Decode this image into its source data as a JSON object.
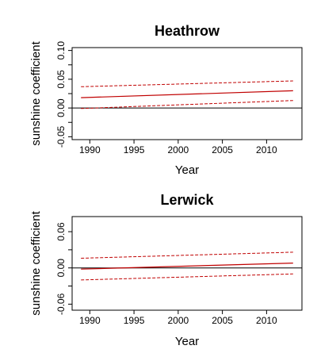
{
  "chart_data": [
    {
      "type": "line",
      "title": "Heathrow",
      "xlabel": "Year",
      "ylabel": "sunshine coefficient",
      "xlim": [
        1988,
        2014
      ],
      "ylim": [
        -0.055,
        0.105
      ],
      "x_ticks": [
        "1990",
        "1995",
        "2000",
        "2005",
        "2010"
      ],
      "y_ticks": [
        "-0.05",
        "0.00",
        "0.05",
        "0.10"
      ],
      "y_tick_values": [
        -0.05,
        0.0,
        0.05,
        0.1
      ],
      "zero_line": 0,
      "colors": {
        "estimate": "#c00000",
        "band": "#c00000",
        "zero": "#000000"
      },
      "series": [
        {
          "role": "upper",
          "style": "dashed",
          "x": [
            1989,
            2013
          ],
          "y": [
            0.037,
            0.047
          ]
        },
        {
          "role": "estimate",
          "style": "solid",
          "x": [
            1989,
            2013
          ],
          "y": [
            0.018,
            0.03
          ]
        },
        {
          "role": "lower",
          "style": "dashed",
          "x": [
            1989,
            2013
          ],
          "y": [
            -0.001,
            0.013
          ]
        }
      ]
    },
    {
      "type": "line",
      "title": "Lerwick",
      "xlabel": "Year",
      "ylabel": "sunshine coefficient",
      "xlim": [
        1988,
        2014
      ],
      "ylim": [
        -0.07,
        0.085
      ],
      "x_ticks": [
        "1990",
        "1995",
        "2000",
        "2005",
        "2010"
      ],
      "y_ticks": [
        "-0.06",
        "0.00",
        "0.06"
      ],
      "y_tick_values": [
        -0.06,
        0.0,
        0.06
      ],
      "zero_line": 0,
      "colors": {
        "estimate": "#c00000",
        "band": "#c00000",
        "zero": "#000000"
      },
      "series": [
        {
          "role": "upper",
          "style": "dashed",
          "x": [
            1989,
            2013
          ],
          "y": [
            0.016,
            0.026
          ]
        },
        {
          "role": "estimate",
          "style": "solid",
          "x": [
            1989,
            2013
          ],
          "y": [
            -0.002,
            0.008
          ]
        },
        {
          "role": "lower",
          "style": "dashed",
          "x": [
            1989,
            2013
          ],
          "y": [
            -0.02,
            -0.01
          ]
        }
      ]
    }
  ]
}
